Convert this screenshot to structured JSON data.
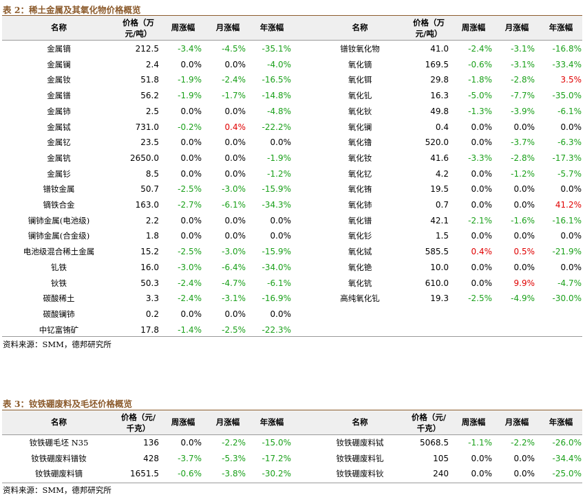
{
  "table2": {
    "title": "表 2：稀土金属及其氧化物价格概览",
    "headers": {
      "name": "名称",
      "price_line1": "价格（万",
      "price_line2": "元/吨）",
      "weekly": "周涨幅",
      "monthly": "月涨幅",
      "yearly": "年涨幅"
    },
    "left_rows": [
      {
        "name": "金属镝",
        "price": "212.5",
        "w": "-3.4%",
        "m": "-4.5%",
        "y": "-35.1%"
      },
      {
        "name": "金属镧",
        "price": "2.4",
        "w": "0.0%",
        "m": "0.0%",
        "y": "-4.0%"
      },
      {
        "name": "金属钕",
        "price": "51.8",
        "w": "-1.9%",
        "m": "-2.4%",
        "y": "-16.5%"
      },
      {
        "name": "金属镨",
        "price": "56.2",
        "w": "-1.9%",
        "m": "-1.7%",
        "y": "-14.8%"
      },
      {
        "name": "金属铈",
        "price": "2.5",
        "w": "0.0%",
        "m": "0.0%",
        "y": "-4.8%"
      },
      {
        "name": "金属铽",
        "price": "731.0",
        "w": "-0.2%",
        "m": "0.4%",
        "y": "-22.2%"
      },
      {
        "name": "金属钇",
        "price": "23.5",
        "w": "0.0%",
        "m": "0.0%",
        "y": "0.0%"
      },
      {
        "name": "金属钪",
        "price": "2650.0",
        "w": "0.0%",
        "m": "0.0%",
        "y": "-1.9%"
      },
      {
        "name": "金属钐",
        "price": "8.5",
        "w": "0.0%",
        "m": "0.0%",
        "y": "-1.2%"
      },
      {
        "name": "镨钕金属",
        "price": "50.7",
        "w": "-2.5%",
        "m": "-3.0%",
        "y": "-15.9%"
      },
      {
        "name": "镝铁合金",
        "price": "163.0",
        "w": "-2.7%",
        "m": "-6.1%",
        "y": "-34.3%"
      },
      {
        "name": "镧铈金属(电池级)",
        "price": "2.2",
        "w": "0.0%",
        "m": "0.0%",
        "y": "0.0%"
      },
      {
        "name": "镧铈金属(合金级)",
        "price": "1.8",
        "w": "0.0%",
        "m": "0.0%",
        "y": "0.0%"
      },
      {
        "name": "电池级混合稀土金属",
        "price": "15.2",
        "w": "-2.5%",
        "m": "-3.0%",
        "y": "-15.9%"
      },
      {
        "name": "钆铁",
        "price": "16.0",
        "w": "-3.0%",
        "m": "-6.4%",
        "y": "-34.0%"
      },
      {
        "name": "钬铁",
        "price": "50.3",
        "w": "-2.4%",
        "m": "-4.7%",
        "y": "-6.1%"
      },
      {
        "name": "碳酸稀土",
        "price": "3.3",
        "w": "-2.4%",
        "m": "-3.1%",
        "y": "-16.9%"
      },
      {
        "name": "碳酸镧铈",
        "price": "0.2",
        "w": "0.0%",
        "m": "0.0%",
        "y": "0.0%"
      },
      {
        "name": "中钇富铕矿",
        "price": "17.8",
        "w": "-1.4%",
        "m": "-2.5%",
        "y": "-22.3%"
      }
    ],
    "right_rows": [
      {
        "name": "镨钕氧化物",
        "price": "41.0",
        "w": "-2.4%",
        "m": "-3.1%",
        "y": "-16.8%"
      },
      {
        "name": "氧化镝",
        "price": "169.5",
        "w": "-0.6%",
        "m": "-3.1%",
        "y": "-33.4%"
      },
      {
        "name": "氧化铒",
        "price": "29.8",
        "w": "-1.8%",
        "m": "-2.8%",
        "y": "3.5%"
      },
      {
        "name": "氧化钆",
        "price": "16.3",
        "w": "-5.0%",
        "m": "-7.7%",
        "y": "-35.0%"
      },
      {
        "name": "氧化钬",
        "price": "49.8",
        "w": "-1.3%",
        "m": "-3.9%",
        "y": "-6.1%"
      },
      {
        "name": "氧化镧",
        "price": "0.4",
        "w": "0.0%",
        "m": "0.0%",
        "y": "0.0%"
      },
      {
        "name": "氧化镥",
        "price": "520.0",
        "w": "0.0%",
        "m": "-3.7%",
        "y": "-6.3%"
      },
      {
        "name": "氧化钕",
        "price": "41.6",
        "w": "-3.3%",
        "m": "-2.8%",
        "y": "-17.3%"
      },
      {
        "name": "氧化钇",
        "price": "4.2",
        "w": "0.0%",
        "m": "-1.2%",
        "y": "-5.7%"
      },
      {
        "name": "氧化铕",
        "price": "19.5",
        "w": "0.0%",
        "m": "0.0%",
        "y": "0.0%"
      },
      {
        "name": "氧化铈",
        "price": "0.7",
        "w": "0.0%",
        "m": "0.0%",
        "y": "41.2%"
      },
      {
        "name": "氧化镨",
        "price": "42.1",
        "w": "-2.1%",
        "m": "-1.6%",
        "y": "-16.1%"
      },
      {
        "name": "氧化钐",
        "price": "1.5",
        "w": "0.0%",
        "m": "0.0%",
        "y": "0.0%"
      },
      {
        "name": "氧化铽",
        "price": "585.5",
        "w": "0.4%",
        "m": "0.5%",
        "y": "-21.9%"
      },
      {
        "name": "氧化铯",
        "price": "10.0",
        "w": "0.0%",
        "m": "0.0%",
        "y": "0.0%"
      },
      {
        "name": "氧化钪",
        "price": "610.0",
        "w": "0.0%",
        "m": "9.9%",
        "y": "-4.7%"
      },
      {
        "name": "高纯氧化钆",
        "price": "19.3",
        "w": "-2.5%",
        "m": "-4.9%",
        "y": "-30.0%"
      }
    ],
    "source": "资料来源：SMM，德邦研究所"
  },
  "table3": {
    "title": "表 3：钕铁硼废料及毛坯价格概览",
    "headers": {
      "name": "名称",
      "price_line1": "价格（元/",
      "price_line2": "千克）",
      "weekly": "周涨幅",
      "monthly": "月涨幅",
      "yearly": "年涨幅"
    },
    "left_rows": [
      {
        "name": "钕铁硼毛坯 N35",
        "price": "136",
        "w": "0.0%",
        "m": "-2.2%",
        "y": "-15.0%"
      },
      {
        "name": "钕铁硼废料镨钕",
        "price": "428",
        "w": "-3.7%",
        "m": "-5.3%",
        "y": "-17.2%"
      },
      {
        "name": "钕铁硼废料镝",
        "price": "1651.5",
        "w": "-0.6%",
        "m": "-3.8%",
        "y": "-30.2%"
      }
    ],
    "right_rows": [
      {
        "name": "钕铁硼废料铽",
        "price": "5068.5",
        "w": "-1.1%",
        "m": "-2.2%",
        "y": "-26.0%"
      },
      {
        "name": "钕铁硼废料钆",
        "price": "105",
        "w": "0.0%",
        "m": "0.0%",
        "y": "-34.4%"
      },
      {
        "name": "钕铁硼废料钬",
        "price": "240",
        "w": "0.0%",
        "m": "0.0%",
        "y": "-25.0%"
      }
    ],
    "source": "资料来源：SMM，德邦研究所"
  },
  "colors": {
    "title": "#8b5a2b",
    "positive": "#e00000",
    "negative": "#1aa01a",
    "header_bg": "#efefef"
  }
}
